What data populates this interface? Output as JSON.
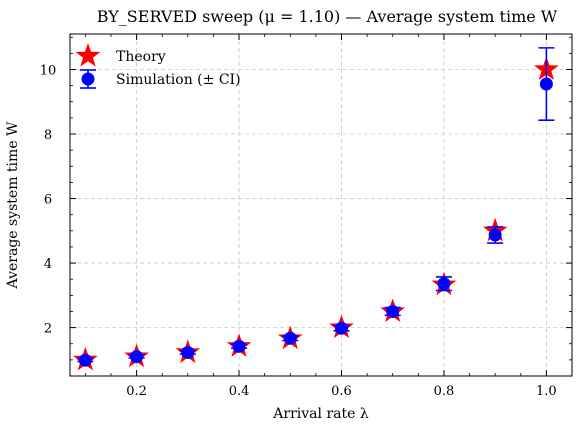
{
  "chart_data": {
    "type": "scatter",
    "title": "BY_SERVED sweep (μ = 1.10) — Average system time W",
    "xlabel": "Arrival rate λ",
    "ylabel": "Average system time W",
    "xlim": [
      0.07,
      1.05
    ],
    "ylim": [
      0.5,
      11.1
    ],
    "xticks": [
      "0.2",
      "0.4",
      "0.6",
      "0.8",
      "1.0"
    ],
    "yticks": [
      "2",
      "4",
      "6",
      "8",
      "10"
    ],
    "grid": true,
    "legend_position": "top-left",
    "series": [
      {
        "name": "Theory",
        "marker": "star",
        "color": "#ff0000",
        "x": [
          0.1,
          0.2,
          0.3,
          0.4,
          0.5,
          0.6,
          0.7,
          0.8,
          0.9,
          1.0
        ],
        "y": [
          1.0,
          1.1,
          1.23,
          1.42,
          1.66,
          2.0,
          2.5,
          3.33,
          5.0,
          10.0
        ]
      },
      {
        "name": "Simulation (± CI)",
        "marker": "circle",
        "color": "#0000ff",
        "x": [
          0.1,
          0.2,
          0.3,
          0.4,
          0.5,
          0.6,
          0.7,
          0.8,
          0.9,
          1.0
        ],
        "y": [
          0.99,
          1.1,
          1.23,
          1.42,
          1.67,
          1.98,
          2.5,
          3.36,
          4.87,
          9.55
        ],
        "ci_low": [
          0.95,
          1.06,
          1.18,
          1.36,
          1.6,
          1.9,
          2.38,
          3.15,
          4.62,
          8.43
        ],
        "ci_high": [
          1.03,
          1.14,
          1.28,
          1.48,
          1.74,
          2.06,
          2.62,
          3.57,
          5.12,
          10.67
        ]
      }
    ]
  }
}
